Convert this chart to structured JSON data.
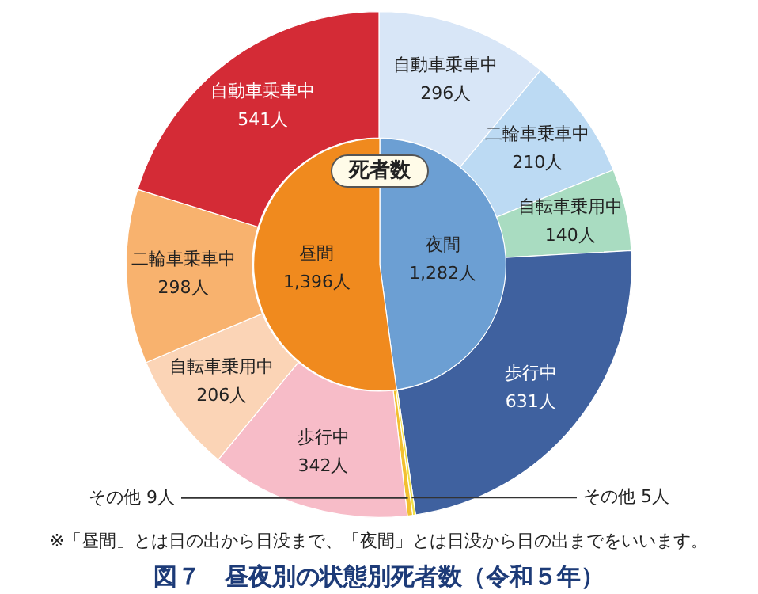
{
  "chart_data": [
    {
      "type": "pie",
      "title": "死者数",
      "categories": [
        "夜間",
        "昼間"
      ],
      "values": [
        1282,
        1396
      ],
      "colors": [
        "#6c9fd3",
        "#f08a1e"
      ],
      "value_labels": [
        "1,282人",
        "1,396人"
      ]
    },
    {
      "type": "donut",
      "title": "図７　昼夜別の状態別死者数（令和５年）",
      "categories": [
        "自動車乗車中",
        "二輪車乗車中",
        "自転車乗用中",
        "歩行中",
        "その他",
        "その他",
        "歩行中",
        "自転車乗用中",
        "二輪車乗車中",
        "自動車乗車中"
      ],
      "values": [
        296,
        210,
        140,
        631,
        5,
        9,
        342,
        206,
        298,
        541
      ],
      "colors": [
        "#d8e6f7",
        "#bcdaf3",
        "#a9dcc1",
        "#3f619f",
        "#f0e04a",
        "#f2c030",
        "#f7bcc8",
        "#fbd4b6",
        "#f8b26e",
        "#d42b36"
      ],
      "value_labels": [
        "296人",
        "210人",
        "140人",
        "631人",
        "5人",
        "9人",
        "342人",
        "206人",
        "298人",
        "541人"
      ],
      "annotations": [
        "※「昼間」とは日の出から日没まで、「夜間」とは日没から日の出までをいいます。"
      ]
    }
  ]
}
